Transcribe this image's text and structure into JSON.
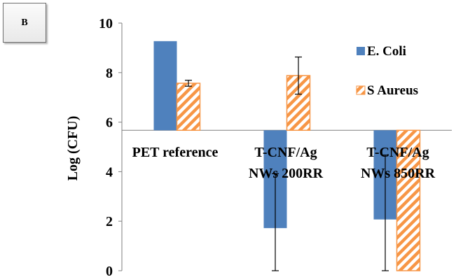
{
  "panel_label": "B",
  "colors": {
    "ecoli": "#4f81bd",
    "saureus": "#f79646",
    "axis": "#7f7f7f",
    "error": "#000000"
  },
  "chart_data": {
    "type": "bar",
    "ylabel": "Log (CFU)",
    "ylim": [
      0,
      10
    ],
    "yticks": [
      0,
      2,
      4,
      6,
      8,
      10
    ],
    "baseline": 5.67,
    "legend_position": "right",
    "categories": [
      [
        "PET reference"
      ],
      [
        "T-CNF/Ag",
        "NWs 200RR"
      ],
      [
        "T-CNF/Ag",
        "NWs 850RR"
      ]
    ],
    "series": [
      {
        "name": "E. Coli",
        "pattern": "solid",
        "values": [
          9.27,
          1.72,
          2.07
        ],
        "errors": [
          0,
          2.2,
          2.6
        ]
      },
      {
        "name": "S Aureus",
        "pattern": "hatched",
        "values": [
          7.57,
          7.88,
          0.0
        ],
        "errors": [
          0.12,
          0.75,
          0.0
        ]
      }
    ]
  }
}
